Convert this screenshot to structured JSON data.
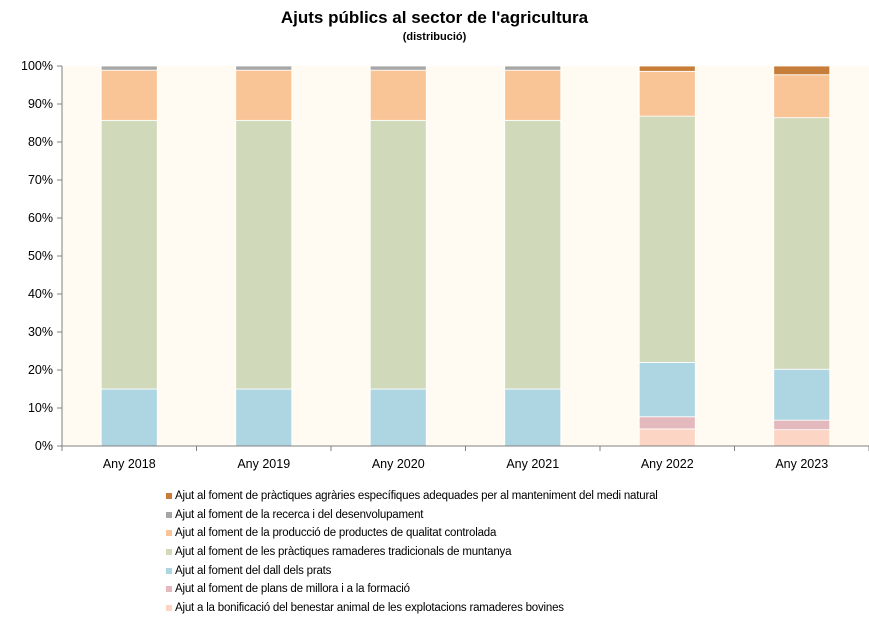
{
  "chart_data": {
    "type": "bar",
    "stacked": true,
    "title": "Ajuts públics  al sector de l'agricultura",
    "subtitle": "(distribució)",
    "categories": [
      "Any 2018",
      "Any 2019",
      "Any 2020",
      "Any 2021",
      "Any 2022",
      "Any 2023"
    ],
    "y_ticks": [
      "0%",
      "10%",
      "20%",
      "30%",
      "40%",
      "50%",
      "60%",
      "70%",
      "80%",
      "90%",
      "100%"
    ],
    "ylim": [
      0,
      100
    ],
    "grid": false,
    "plot_background": "#FFFBF2",
    "legend_position": "bottom",
    "series": [
      {
        "name": "Ajut a la bonificació del benestar animal de les explotacions ramaderes bovines",
        "color": "#FCD5C4",
        "values": [
          0,
          0,
          0,
          0,
          4.5,
          4.3
        ]
      },
      {
        "name": "Ajut al foment de plans de millora i a la formació",
        "color": "#E3B9BE",
        "values": [
          0,
          0,
          0,
          0,
          3.2,
          2.5
        ]
      },
      {
        "name": "Ajut al foment del dall dels prats",
        "color": "#ADD6E2",
        "values": [
          15,
          15,
          15,
          15,
          14.3,
          13.4
        ]
      },
      {
        "name": "Ajut al foment de les pràctiques ramaderes tradicionals de muntanya",
        "color": "#D0D9BA",
        "values": [
          70.7,
          70.7,
          70.7,
          70.7,
          64.8,
          66.2
        ]
      },
      {
        "name": "Ajut al foment de la producció de productes de qualitat controlada",
        "color": "#F9C496",
        "values": [
          13.2,
          13.2,
          13.2,
          13.2,
          11.8,
          11.3
        ]
      },
      {
        "name": "Ajut al foment de la recerca i del desenvolupament",
        "color": "#A6A6A6",
        "values": [
          1.1,
          1.1,
          1.1,
          1.1,
          0,
          0
        ]
      },
      {
        "name": "Ajut al foment de pràctiques agràries específiques adequades per al manteniment del medi natural",
        "color": "#C87E3B",
        "values": [
          0,
          0,
          0,
          0,
          1.4,
          2.3
        ]
      }
    ]
  }
}
